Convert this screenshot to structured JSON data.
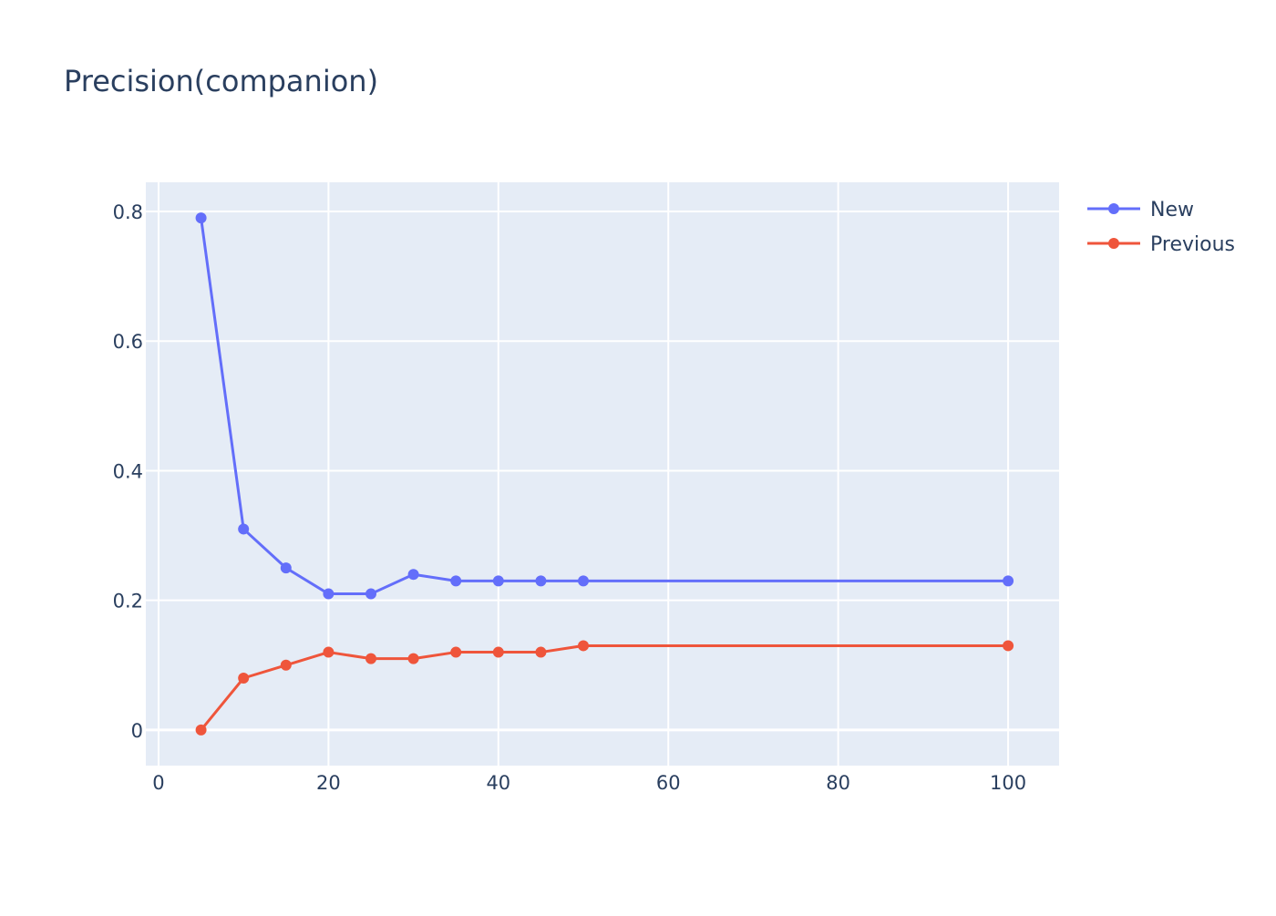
{
  "chart_data": {
    "type": "line",
    "title": "Precision(companion)",
    "xlabel": "",
    "ylabel": "",
    "xlim": [
      -1.5,
      106
    ],
    "ylim": [
      -0.055,
      0.845
    ],
    "x_ticks": [
      0,
      20,
      40,
      60,
      80,
      100
    ],
    "x_tick_labels": [
      "0",
      "20",
      "40",
      "60",
      "80",
      "100"
    ],
    "y_ticks": [
      0,
      0.2,
      0.4,
      0.6,
      0.8
    ],
    "y_tick_labels": [
      "0",
      "0.2",
      "0.4",
      "0.6",
      "0.8"
    ],
    "grid": true,
    "legend_position": "top-right",
    "colors": {
      "plot_background": "#e5ecf6",
      "grid": "#ffffff",
      "text": "#2a3f5f"
    },
    "x": [
      5,
      10,
      15,
      20,
      25,
      30,
      35,
      40,
      45,
      50,
      100
    ],
    "series": [
      {
        "name": "New",
        "color": "#636efa",
        "values": [
          0.79,
          0.31,
          0.25,
          0.21,
          0.21,
          0.24,
          0.23,
          0.23,
          0.23,
          0.23,
          0.23
        ]
      },
      {
        "name": "Previous",
        "color": "#ef553b",
        "values": [
          0.0,
          0.08,
          0.1,
          0.12,
          0.11,
          0.11,
          0.12,
          0.12,
          0.12,
          0.13,
          0.13
        ]
      }
    ]
  }
}
